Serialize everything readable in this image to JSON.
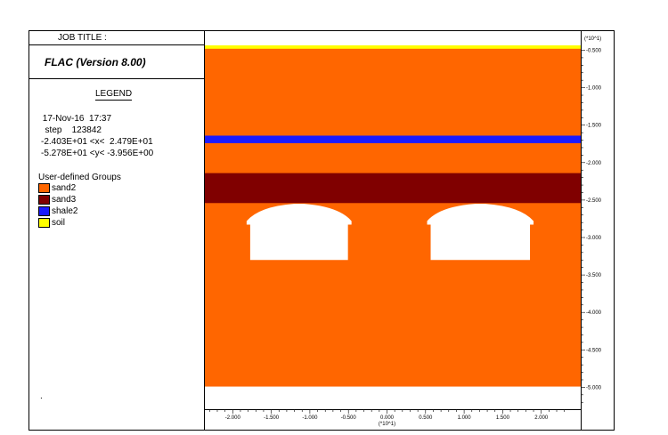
{
  "job_title_label": "JOB TITLE :",
  "program": "FLAC (Version 8.00)",
  "legend_title": "LEGEND",
  "info_lines": [
    " 17-Nov-16  17:37",
    "  step    123842",
    "-2.403E+01 <x<  2.479E+01",
    "-5.278E+01 <y< -3.956E+00"
  ],
  "groups_title": "User-defined Groups",
  "groups": [
    {
      "name": "sand2",
      "color": "#ff6600"
    },
    {
      "name": "sand3",
      "color": "#800000"
    },
    {
      "name": "shale2",
      "color": "#1a1aff"
    },
    {
      "name": "soil",
      "color": "#ffff00"
    }
  ],
  "dot": ".",
  "y_axis": {
    "multiplier": "(*10^1)",
    "ticks": [
      {
        "value": -0.5,
        "label": "-0.500"
      },
      {
        "value": -1.0,
        "label": "-1.000"
      },
      {
        "value": -1.5,
        "label": "-1.500"
      },
      {
        "value": -2.0,
        "label": "-2.000"
      },
      {
        "value": -2.5,
        "label": "-2.500"
      },
      {
        "value": -3.0,
        "label": "-3.000"
      },
      {
        "value": -3.5,
        "label": "-3.500"
      },
      {
        "value": -4.0,
        "label": "-4.000"
      },
      {
        "value": -4.5,
        "label": "-4.500"
      },
      {
        "value": -5.0,
        "label": "-5.000"
      }
    ]
  },
  "x_axis": {
    "multiplier": "(*10^1)",
    "ticks": [
      {
        "value": -2.0,
        "label": "-2.000"
      },
      {
        "value": -1.5,
        "label": "-1.500"
      },
      {
        "value": -1.0,
        "label": "-1.000"
      },
      {
        "value": -0.5,
        "label": "-0.500"
      },
      {
        "value": 0.0,
        "label": "0.000"
      },
      {
        "value": 0.5,
        "label": "0.500"
      },
      {
        "value": 1.0,
        "label": "1.000"
      },
      {
        "value": 1.5,
        "label": "1.500"
      },
      {
        "value": 2.0,
        "label": "2.000"
      }
    ]
  },
  "model": {
    "x_range": [
      -2.403,
      2.479
    ],
    "y_range": [
      -5.278,
      -0.3956
    ],
    "background_group": "sand2",
    "layers": [
      {
        "group": "soil",
        "y_top": -0.3956,
        "y_bottom": -0.48
      },
      {
        "group": "shale2",
        "y_top": -1.64,
        "y_bottom": -1.74
      },
      {
        "group": "sand3",
        "y_top": -2.14,
        "y_bottom": -2.54
      }
    ],
    "model_bottom_y": -4.99,
    "openings": [
      {
        "x_left": -1.82,
        "x_right": -0.46,
        "y_top": -2.55,
        "y_spring": -2.78,
        "y_bottom": -3.3
      },
      {
        "x_left": 0.52,
        "x_right": 1.9,
        "y_top": -2.55,
        "y_spring": -2.78,
        "y_bottom": -3.3
      }
    ],
    "opening_color": "#ffffff"
  }
}
